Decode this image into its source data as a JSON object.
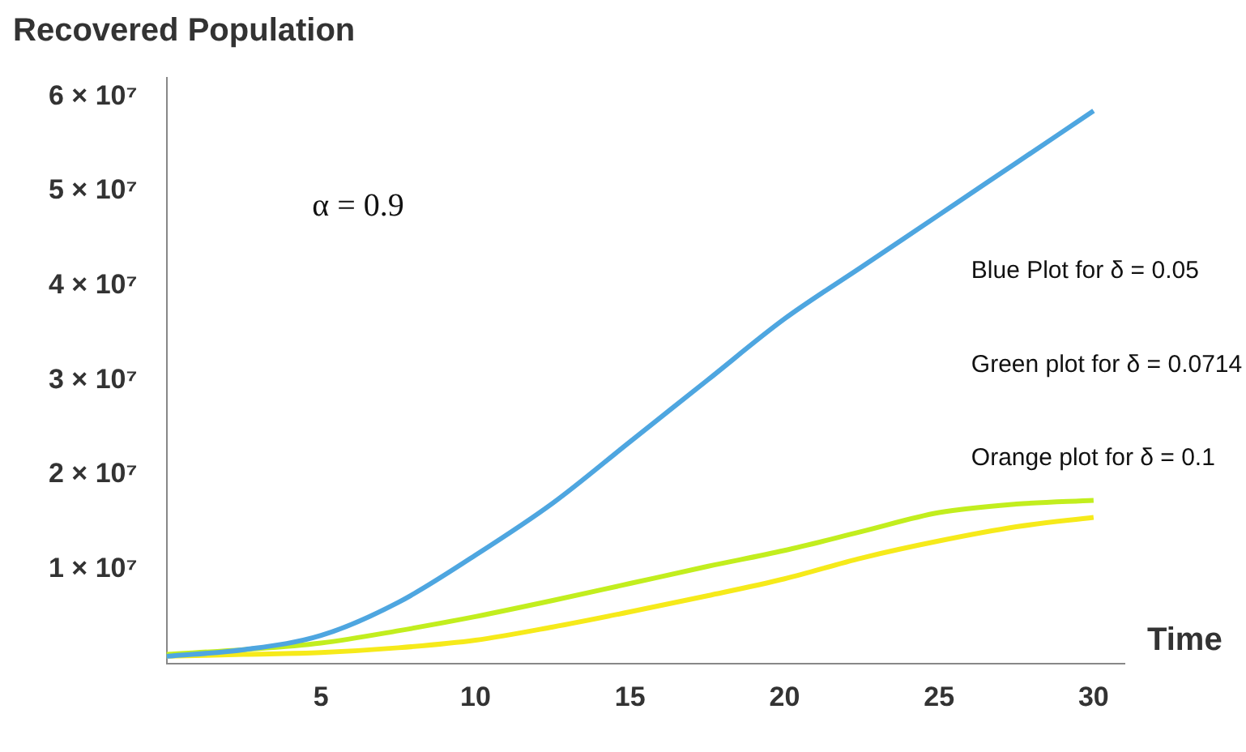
{
  "chart_data": {
    "type": "line",
    "title": "Recovered Population",
    "xlabel": "Time",
    "annotations": [
      "α = 0.9",
      "Blue Plot for δ = 0.05",
      "Green plot for δ = 0.0714",
      "Orange plot for δ = 0.1"
    ],
    "x": [
      0,
      2.5,
      5,
      7.5,
      10,
      12.5,
      15,
      17.5,
      20,
      22.5,
      25,
      27.5,
      30
    ],
    "series": [
      {
        "color": "#4ea6e0",
        "values": [
          800000,
          1500000,
          3000000,
          6500000,
          11500000,
          17000000,
          23500000,
          30000000,
          36500000,
          42000000,
          47500000,
          53000000,
          58500000
        ]
      },
      {
        "color": "#c2ee1e",
        "values": [
          1000000,
          1500000,
          2200000,
          3500000,
          5000000,
          6700000,
          8500000,
          10300000,
          12000000,
          14000000,
          16000000,
          16900000,
          17300000
        ]
      },
      {
        "color": "#f6ea1a",
        "values": [
          800000,
          1000000,
          1200000,
          1700000,
          2500000,
          3900000,
          5500000,
          7200000,
          9000000,
          11200000,
          13000000,
          14500000,
          15500000
        ]
      }
    ],
    "xlim": [
      0,
      31
    ],
    "xticks": [
      5,
      10,
      15,
      20,
      25,
      30
    ],
    "ylim": [
      0,
      62000000
    ],
    "yticks": [
      {
        "value": 10000000,
        "label": "1 × 10⁷"
      },
      {
        "value": 20000000,
        "label": "2 × 10⁷"
      },
      {
        "value": 30000000,
        "label": "3 × 10⁷"
      },
      {
        "value": 40000000,
        "label": "4 × 10⁷"
      },
      {
        "value": 50000000,
        "label": "5 × 10⁷"
      },
      {
        "value": 60000000,
        "label": "6 × 10⁷"
      }
    ],
    "grid": false,
    "legend": false,
    "marker": "none",
    "line_style": "solid"
  }
}
